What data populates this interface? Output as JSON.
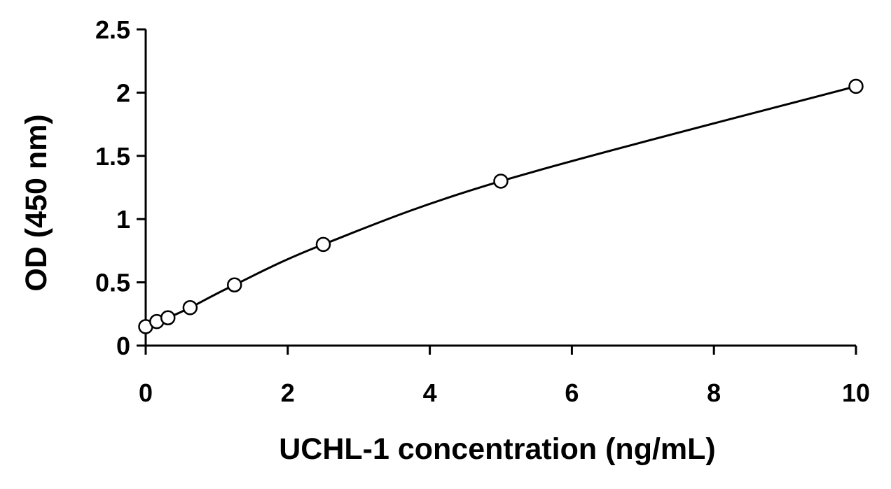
{
  "chart_data": {
    "type": "scatter",
    "title": "",
    "xlabel": "UCHL-1 concentration (ng/mL)",
    "ylabel": "OD (450 nm)",
    "xlim": [
      0,
      10
    ],
    "ylim": [
      0,
      2.5
    ],
    "x_ticks": [
      "0",
      "2",
      "4",
      "6",
      "8",
      "10"
    ],
    "y_ticks": [
      "0",
      "0.5",
      "1",
      "1.5",
      "2",
      "2.5"
    ],
    "grid": false,
    "legend": "none",
    "series": [
      {
        "x": [
          0,
          0.156,
          0.313,
          0.625,
          1.25,
          2.5,
          5,
          10
        ],
        "y": [
          0.15,
          0.19,
          0.22,
          0.3,
          0.48,
          0.8,
          1.3,
          2.05
        ],
        "marker": "open-circle",
        "trendline": "smooth-curve"
      }
    ],
    "colors": {
      "line": "#000000",
      "marker_stroke": "#000000",
      "marker_fill": "#ffffff"
    }
  }
}
